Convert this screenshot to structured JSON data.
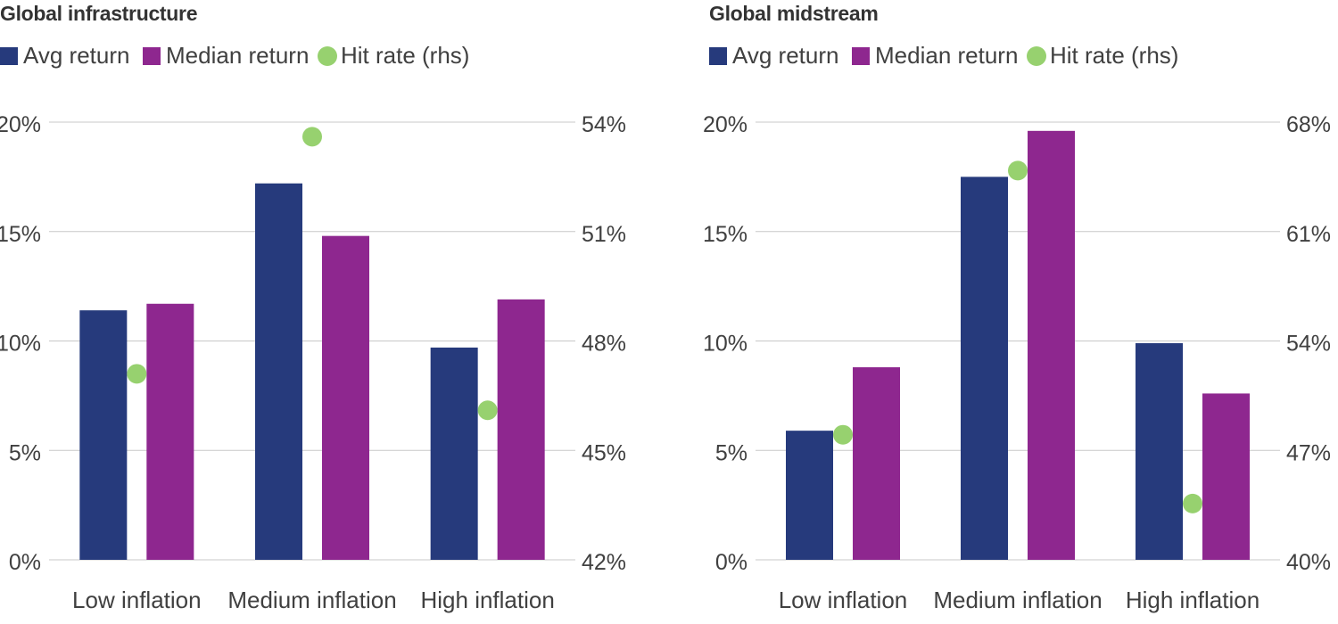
{
  "colors": {
    "avg_return": "#263a7c",
    "median_return": "#8e278f",
    "hit_rate": "#97d16f",
    "gridline": "#c8c8c8",
    "text": "#404040"
  },
  "chart_data": [
    {
      "type": "bar",
      "title": "Global infrastructure",
      "categories": [
        "Low inflation",
        "Medium inflation",
        "High inflation"
      ],
      "series": [
        {
          "name": "Avg return",
          "kind": "bar",
          "axis": "left",
          "values": [
            11.4,
            17.2,
            9.7
          ]
        },
        {
          "name": "Median return",
          "kind": "bar",
          "axis": "left",
          "values": [
            11.7,
            14.8,
            11.9
          ]
        },
        {
          "name": "Hit rate (rhs)",
          "kind": "scatter",
          "axis": "right",
          "values": [
            47.1,
            53.6,
            46.1
          ]
        }
      ],
      "y_left": {
        "ylim": [
          0,
          20
        ],
        "ticks": [
          0,
          5,
          10,
          15,
          20
        ],
        "tick_labels": [
          "0%",
          "5%",
          "10%",
          "15%",
          "20%"
        ]
      },
      "y_right": {
        "ylim": [
          42,
          54
        ],
        "ticks": [
          42,
          45,
          48,
          51,
          54
        ],
        "tick_labels": [
          "42%",
          "45%",
          "48%",
          "51%",
          "54%"
        ]
      },
      "grid": true,
      "legend": "top-left"
    },
    {
      "type": "bar",
      "title": "Global midstream",
      "categories": [
        "Low inflation",
        "Medium inflation",
        "High inflation"
      ],
      "series": [
        {
          "name": "Avg return",
          "kind": "bar",
          "axis": "left",
          "values": [
            5.9,
            17.5,
            9.9
          ]
        },
        {
          "name": "Median return",
          "kind": "bar",
          "axis": "left",
          "values": [
            8.8,
            19.6,
            7.6
          ]
        },
        {
          "name": "Hit rate (rhs)",
          "kind": "scatter",
          "axis": "right",
          "values": [
            48.0,
            64.9,
            43.6
          ]
        }
      ],
      "y_left": {
        "ylim": [
          0,
          20
        ],
        "ticks": [
          0,
          5,
          10,
          15,
          20
        ],
        "tick_labels": [
          "0%",
          "5%",
          "10%",
          "15%",
          "20%"
        ]
      },
      "y_right": {
        "ylim": [
          40,
          68
        ],
        "ticks": [
          40,
          47,
          54,
          61,
          68
        ],
        "tick_labels": [
          "40%",
          "47%",
          "54%",
          "61%",
          "68%"
        ]
      },
      "grid": true,
      "legend": "top-left"
    }
  ]
}
